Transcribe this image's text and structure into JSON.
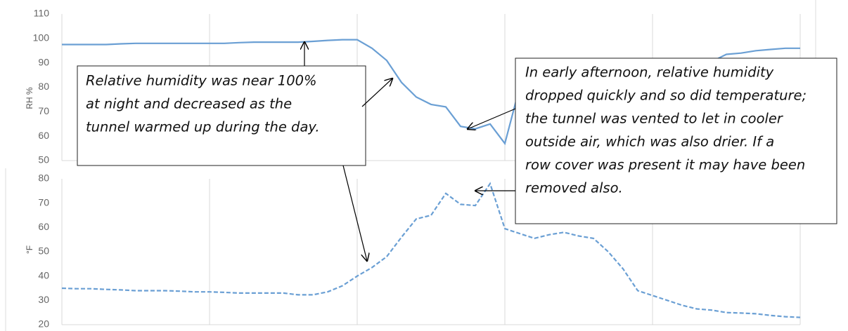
{
  "chart_data": [
    {
      "type": "line",
      "y_label": "RH %",
      "ylim": [
        50,
        110
      ],
      "yticks": [
        50,
        60,
        70,
        80,
        90,
        100,
        110
      ],
      "grid": "x",
      "series": [
        {
          "name": "Relative humidity",
          "color": "#6a9fd4",
          "dash": false,
          "values": [
            97.5,
            97.5,
            97.5,
            97.5,
            97.8,
            98,
            98,
            98,
            98,
            98,
            98,
            98,
            98.3,
            98.5,
            98.5,
            98.5,
            98.5,
            98.8,
            99.2,
            99.5,
            99.5,
            96,
            91,
            82,
            76,
            73,
            72,
            64,
            63,
            65,
            57,
            80,
            82,
            86,
            86,
            86,
            87,
            88,
            86.5,
            86,
            86.5,
            88.5,
            89,
            89.5,
            90.5,
            93.5,
            94,
            95,
            95.5,
            96,
            96
          ]
        }
      ],
      "annotations": [
        {
          "text": [
            "Relative humidity was near 100%",
            "at night and decreased as the",
            "tunnel warmed up during the day."
          ]
        },
        {
          "text": [
            "In early afternoon, relative humidity",
            "dropped quickly and so did temperature;",
            "the tunnel was vented to let in cooler",
            "outside air, which was also drier. If a",
            "row cover was present it may have been",
            "removed also."
          ]
        }
      ]
    },
    {
      "type": "line",
      "y_label": "°F",
      "ylim": [
        20,
        80
      ],
      "yticks": [
        20,
        30,
        40,
        50,
        60,
        70,
        80
      ],
      "grid": "x",
      "series": [
        {
          "name": "Temperature",
          "color": "#6a9fd4",
          "dash": true,
          "values": [
            35,
            34.8,
            34.8,
            34.5,
            34.3,
            34,
            34,
            34,
            33.8,
            33.5,
            33.5,
            33.3,
            33,
            33,
            33,
            33,
            32.3,
            32.3,
            33.5,
            36,
            40,
            43.5,
            48,
            56,
            63.5,
            65,
            74,
            69.5,
            69,
            78,
            59.5,
            57.5,
            55.5,
            57,
            58,
            56.5,
            55.5,
            50,
            43,
            34,
            32,
            30,
            28,
            26.5,
            26,
            25,
            24.8,
            24.5,
            23.8,
            23.3,
            23
          ]
        }
      ]
    }
  ]
}
